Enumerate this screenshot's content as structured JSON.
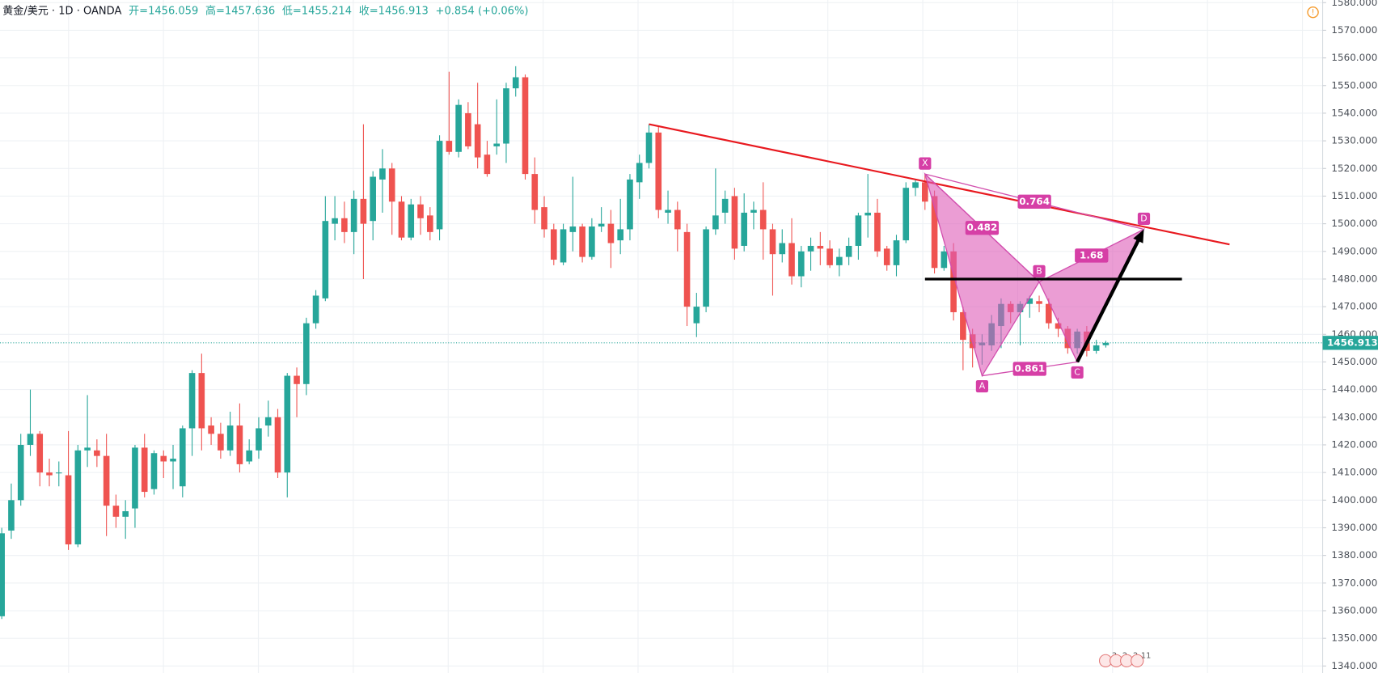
{
  "chart_data": {
    "type": "candlestick",
    "header": {
      "symbol": "黄金/美元 · 1D · OANDA",
      "ohlc": [
        "开=1456.059",
        "高=1457.636",
        "低=1455.214",
        "收=1456.913"
      ],
      "change": "+0.854 (+0.06%)"
    },
    "open": [
      1358,
      1389,
      1400,
      1420,
      1424,
      1410,
      1410,
      1409,
      1384,
      1418,
      1418,
      1416,
      1398,
      1394,
      1397,
      1419,
      1404,
      1416,
      1414,
      1405,
      1426,
      1446,
      1427,
      1424,
      1418,
      1427,
      1414,
      1418,
      1427,
      1430,
      1410,
      1445,
      1442,
      1464,
      1473,
      1500,
      1502,
      1497,
      1509,
      1501,
      1516,
      1520,
      1508,
      1495,
      1507,
      1503,
      1498,
      1530,
      1526,
      1540,
      1536,
      1525,
      1528,
      1529,
      1549,
      1553,
      1518,
      1506,
      1498,
      1486,
      1497,
      1499,
      1488,
      1499,
      1500,
      1494,
      1498,
      1515,
      1522,
      1533,
      1504,
      1505,
      1497,
      1464,
      1470,
      1498,
      1504,
      1510,
      1492,
      1504,
      1505,
      1498,
      1489,
      1493,
      1481,
      1490,
      1492,
      1491,
      1485,
      1488,
      1492,
      1503,
      1504,
      1491,
      1485,
      1494,
      1513,
      1515,
      1510,
      1484,
      1490,
      1468,
      1460,
      1456,
      1456,
      1463,
      1471,
      1468,
      1471,
      1472,
      1471,
      1464,
      1462,
      1455,
      1461,
      1454,
      1456.059
    ],
    "high": [
      1390,
      1406,
      1424,
      1440,
      1425,
      1415,
      1414,
      1425,
      1420,
      1438,
      1422,
      1424,
      1402,
      1400,
      1420,
      1424,
      1418,
      1418,
      1420,
      1427,
      1447,
      1453,
      1430,
      1428,
      1432,
      1435,
      1422,
      1430,
      1436,
      1433,
      1446,
      1448,
      1466,
      1476,
      1510,
      1510,
      1508,
      1512,
      1536,
      1519,
      1527,
      1522,
      1510,
      1509,
      1510,
      1506,
      1532,
      1555,
      1545,
      1544,
      1551,
      1530,
      1545,
      1551,
      1557,
      1554,
      1524,
      1510,
      1500,
      1500,
      1517,
      1500,
      1502,
      1506,
      1505,
      1509,
      1518,
      1525,
      1536,
      1535,
      1512,
      1508,
      1500,
      1475,
      1499,
      1520,
      1512,
      1513,
      1511,
      1508,
      1515,
      1500,
      1498,
      1502,
      1492,
      1495,
      1497,
      1494,
      1491,
      1495,
      1504,
      1518,
      1509,
      1492,
      1496,
      1515,
      1516,
      1518,
      1512,
      1492,
      1493,
      1470,
      1462,
      1460,
      1467,
      1473,
      1472,
      1472,
      1474,
      1474,
      1473,
      1466,
      1463,
      1462,
      1463,
      1458,
      1457.636
    ],
    "low": [
      1357,
      1386,
      1398,
      1416,
      1405,
      1405,
      1405,
      1382,
      1383,
      1412,
      1412,
      1387,
      1390,
      1386,
      1390,
      1401,
      1402,
      1408,
      1404,
      1401,
      1416,
      1418,
      1420,
      1415,
      1416,
      1410,
      1413,
      1415,
      1423,
      1408,
      1401,
      1430,
      1438,
      1462,
      1472,
      1494,
      1493,
      1489,
      1480,
      1494,
      1504,
      1496,
      1494,
      1494,
      1496,
      1494,
      1494,
      1525,
      1524,
      1527,
      1520,
      1517,
      1525,
      1522,
      1546,
      1516,
      1500,
      1495,
      1485,
      1485,
      1490,
      1486,
      1487,
      1497,
      1484,
      1489,
      1494,
      1509,
      1520,
      1502,
      1500,
      1490,
      1463,
      1459,
      1468,
      1496,
      1500,
      1487,
      1490,
      1498,
      1487,
      1474,
      1486,
      1478,
      1477,
      1483,
      1485,
      1484,
      1481,
      1485,
      1487,
      1495,
      1488,
      1483,
      1481,
      1493,
      1510,
      1505,
      1482,
      1483,
      1465,
      1447,
      1448,
      1449,
      1454,
      1455,
      1464,
      1456,
      1466,
      1468,
      1462,
      1459,
      1453,
      1453,
      1452,
      1453,
      1455.214
    ],
    "close": [
      1388,
      1400,
      1420,
      1424,
      1410,
      1409,
      1410,
      1384,
      1418,
      1419,
      1416,
      1398,
      1394,
      1396,
      1419,
      1403,
      1417,
      1414,
      1415,
      1426,
      1446,
      1426,
      1424,
      1418,
      1427,
      1413,
      1418,
      1426,
      1430,
      1410,
      1445,
      1442,
      1464,
      1474,
      1501,
      1502,
      1497,
      1509,
      1500,
      1517,
      1520,
      1508,
      1495,
      1507,
      1502,
      1497,
      1530,
      1526,
      1543,
      1528,
      1524,
      1518,
      1529,
      1549,
      1553,
      1518,
      1505,
      1498,
      1487,
      1498,
      1499,
      1488,
      1499,
      1500,
      1493,
      1498,
      1516,
      1522,
      1533,
      1505,
      1505,
      1498,
      1470,
      1470,
      1498,
      1503,
      1509,
      1491,
      1504,
      1505,
      1498,
      1489,
      1493,
      1481,
      1490,
      1492,
      1491,
      1485,
      1488,
      1492,
      1503,
      1504,
      1490,
      1485,
      1494,
      1513,
      1515,
      1508,
      1484,
      1490,
      1468,
      1458,
      1455,
      1457,
      1464,
      1471,
      1468,
      1471,
      1473,
      1471,
      1464,
      1462,
      1455,
      1461,
      1454,
      1456,
      1456.913
    ],
    "up_color": "#26a69a",
    "down_color": "#ef5350",
    "ylim": [
      1340,
      1580
    ],
    "yticks": [
      {
        "value": 1340,
        "label": "1340.000"
      },
      {
        "value": 1350,
        "label": "1350.000"
      },
      {
        "value": 1360,
        "label": "1360.000"
      },
      {
        "value": 1370,
        "label": "1370.000"
      },
      {
        "value": 1380,
        "label": "1380.000"
      },
      {
        "value": 1390,
        "label": "1390.000"
      },
      {
        "value": 1400,
        "label": "1400.000"
      },
      {
        "value": 1410,
        "label": "1410.000"
      },
      {
        "value": 1420,
        "label": "1420.000"
      },
      {
        "value": 1430,
        "label": "1430.000"
      },
      {
        "value": 1440,
        "label": "1440.000"
      },
      {
        "value": 1450,
        "label": "1450.000"
      },
      {
        "value": 1460,
        "label": "1460.000"
      },
      {
        "value": 1470,
        "label": "1470.000"
      },
      {
        "value": 1480,
        "label": "1480.000"
      },
      {
        "value": 1490,
        "label": "1490.000"
      },
      {
        "value": 1500,
        "label": "1500.000"
      },
      {
        "value": 1510,
        "label": "1510.000"
      },
      {
        "value": 1520,
        "label": "1520.000"
      },
      {
        "value": 1530,
        "label": "1530.000"
      },
      {
        "value": 1540,
        "label": "1540.000"
      },
      {
        "value": 1550,
        "label": "1550.000"
      },
      {
        "value": 1560,
        "label": "1560.000"
      },
      {
        "value": 1570,
        "label": "1570.000"
      },
      {
        "value": 1580,
        "label": "1580.000"
      }
    ],
    "last_price": {
      "value": 1456.913,
      "label": "1456.913"
    },
    "grid": true,
    "pattern": [
      {
        "label": "X",
        "bar": 97,
        "price": 1518
      },
      {
        "label": "A",
        "bar": 103,
        "price": 1445
      },
      {
        "label": "B",
        "bar": 109,
        "price": 1479
      },
      {
        "label": "C",
        "bar": 113,
        "price": 1450
      },
      {
        "label": "D",
        "bar": 120,
        "price": 1498
      }
    ],
    "ratios": [
      "0.482",
      "1.68",
      "0.861",
      "0.764"
    ],
    "trendline": {
      "bars": [
        68,
        129
      ],
      "prices": [
        1536,
        1492.5
      ],
      "color": "#e8191f"
    },
    "level": {
      "bars": [
        97,
        124
      ],
      "price": 1480
    },
    "event_badges": [
      "3",
      "2",
      "2",
      "11"
    ]
  }
}
